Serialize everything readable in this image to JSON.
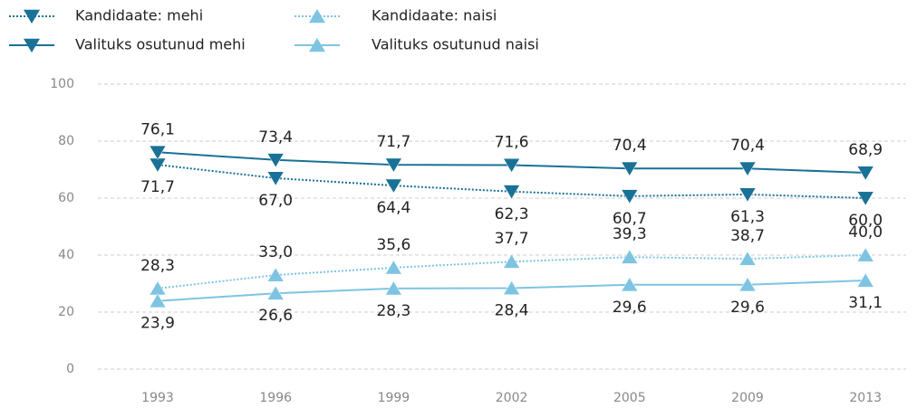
{
  "chart_data": {
    "type": "line",
    "categories": [
      "1993",
      "1996",
      "1999",
      "2002",
      "2005",
      "2009",
      "2013"
    ],
    "ylim": [
      0,
      100
    ],
    "yticks": [
      0,
      20,
      40,
      60,
      80,
      100
    ],
    "grid": true,
    "series": [
      {
        "name": "Kandidaate: mehi",
        "color": "#1a7197",
        "line_style": "dotted",
        "marker": "triangle-down",
        "label_position": "below",
        "values": [
          71.7,
          67.0,
          64.4,
          62.3,
          60.7,
          61.3,
          60.0
        ],
        "value_labels": [
          "71,7",
          "67,0",
          "64,4",
          "62,3",
          "60,7",
          "61,3",
          "60,0"
        ]
      },
      {
        "name": "Valituks osutunud mehi",
        "color": "#1a7197",
        "line_style": "solid",
        "marker": "triangle-down",
        "label_position": "above",
        "values": [
          76.1,
          73.4,
          71.7,
          71.6,
          70.4,
          70.4,
          68.9
        ],
        "value_labels": [
          "76,1",
          "73,4",
          "71,7",
          "71,6",
          "70,4",
          "70,4",
          "68,9"
        ]
      },
      {
        "name": "Kandidaate: naisi",
        "color": "#7ec4e2",
        "line_style": "dotted",
        "marker": "triangle-up",
        "label_position": "above",
        "values": [
          28.3,
          33.0,
          35.6,
          37.7,
          39.3,
          38.7,
          40.0
        ],
        "value_labels": [
          "28,3",
          "33,0",
          "35,6",
          "37,7",
          "39,3",
          "38,7",
          "40,0"
        ]
      },
      {
        "name": "Valituks osutunud naisi",
        "color": "#7ec4e2",
        "line_style": "solid",
        "marker": "triangle-up",
        "label_position": "below",
        "values": [
          23.9,
          26.6,
          28.3,
          28.4,
          29.6,
          29.6,
          31.1
        ],
        "value_labels": [
          "23,9",
          "26,6",
          "28,3",
          "28,4",
          "29,6",
          "29,6",
          "31,1"
        ]
      }
    ]
  }
}
